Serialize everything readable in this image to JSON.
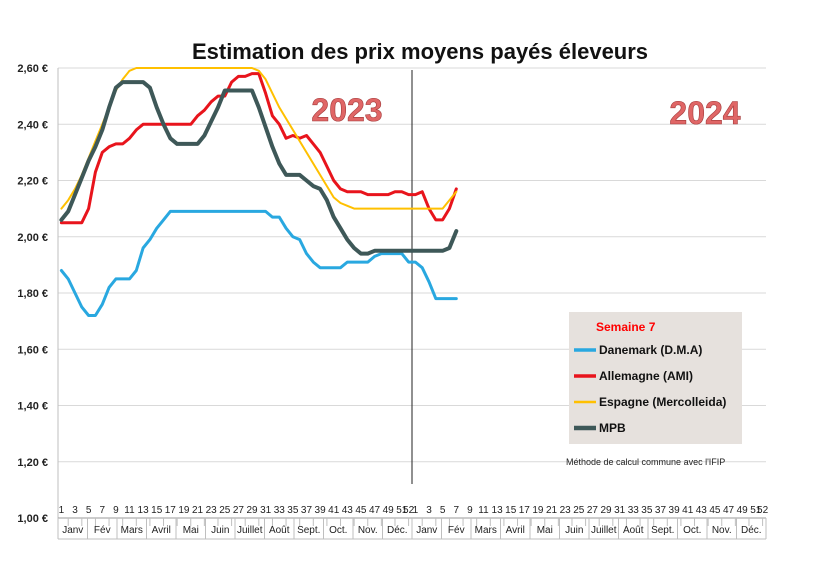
{
  "chart_data": {
    "type": "line",
    "title": "Estimation des prix moyens payés éleveurs",
    "xlabel": "",
    "ylabel": "",
    "ylim": [
      1.0,
      2.6
    ],
    "y_ticks": [
      "1,00 €",
      "1,20 €",
      "1,40 €",
      "1,60 €",
      "1,80 €",
      "2,00 €",
      "2,20 €",
      "2,40 €",
      "2,60 €"
    ],
    "y_tick_values": [
      1.0,
      1.2,
      1.4,
      1.6,
      1.8,
      2.0,
      2.2,
      2.4,
      2.6
    ],
    "grid": true,
    "weeks_per_year": 52,
    "years": [
      "2023",
      "2024"
    ],
    "week_ticks": [
      "1",
      "3",
      "5",
      "7",
      "9",
      "11",
      "13",
      "15",
      "17",
      "19",
      "21",
      "23",
      "25",
      "27",
      "29",
      "31",
      "33",
      "35",
      "37",
      "39",
      "41",
      "43",
      "45",
      "47",
      "49",
      "51",
      "52",
      "1",
      "3",
      "5",
      "7",
      "9",
      "11",
      "13",
      "15",
      "17",
      "19",
      "21",
      "23",
      "25",
      "27",
      "29",
      "31",
      "33",
      "35",
      "37",
      "39",
      "41",
      "43",
      "45",
      "47",
      "49",
      "51",
      "52"
    ],
    "months": [
      "Janv",
      "Fév",
      "Mars",
      "Avril",
      "Mai",
      "Juin",
      "Juillet",
      "Août",
      "Sept.",
      "Oct.",
      "Nov.",
      "Déc.",
      "Janv",
      "Fév",
      "Mars",
      "Avril",
      "Mai",
      "Juin",
      "Juillet",
      "Août",
      "Sept.",
      "Oct.",
      "Nov.",
      "Déc."
    ],
    "legend_title": "Semaine 7",
    "legend_position": "bottom-right",
    "note": "Méthode de calcul commune avec l'IFIP",
    "series": [
      {
        "name": "Danemark (D.M.A)",
        "color": "#29a8e0",
        "x": [
          1,
          2,
          3,
          4,
          5,
          6,
          7,
          8,
          9,
          10,
          11,
          12,
          13,
          14,
          15,
          16,
          17,
          18,
          19,
          20,
          21,
          22,
          23,
          24,
          25,
          26,
          27,
          28,
          29,
          30,
          31,
          32,
          33,
          34,
          35,
          36,
          37,
          38,
          39,
          40,
          41,
          42,
          43,
          44,
          45,
          46,
          47,
          48,
          49,
          50,
          51,
          52,
          53,
          54,
          55,
          56,
          57,
          58,
          59
        ],
        "values": [
          1.88,
          1.85,
          1.8,
          1.75,
          1.72,
          1.72,
          1.76,
          1.82,
          1.85,
          1.85,
          1.85,
          1.88,
          1.96,
          1.99,
          2.03,
          2.06,
          2.09,
          2.09,
          2.09,
          2.09,
          2.09,
          2.09,
          2.09,
          2.09,
          2.09,
          2.09,
          2.09,
          2.09,
          2.09,
          2.09,
          2.09,
          2.07,
          2.07,
          2.03,
          2.0,
          1.99,
          1.94,
          1.91,
          1.89,
          1.89,
          1.89,
          1.89,
          1.91,
          1.91,
          1.91,
          1.91,
          1.93,
          1.94,
          1.94,
          1.94,
          1.94,
          1.91,
          1.91,
          1.89,
          1.84,
          1.78,
          1.78,
          1.78,
          1.78
        ]
      },
      {
        "name": "Allemagne (AMI)",
        "color": "#e8141c",
        "x": [
          1,
          2,
          3,
          4,
          5,
          6,
          7,
          8,
          9,
          10,
          11,
          12,
          13,
          14,
          15,
          16,
          17,
          18,
          19,
          20,
          21,
          22,
          23,
          24,
          25,
          26,
          27,
          28,
          29,
          30,
          31,
          32,
          33,
          34,
          35,
          36,
          37,
          38,
          39,
          40,
          41,
          42,
          43,
          44,
          45,
          46,
          47,
          48,
          49,
          50,
          51,
          52,
          53,
          54,
          55,
          56,
          57,
          58,
          59
        ],
        "values": [
          2.05,
          2.05,
          2.05,
          2.05,
          2.1,
          2.23,
          2.3,
          2.32,
          2.33,
          2.33,
          2.35,
          2.38,
          2.4,
          2.4,
          2.4,
          2.4,
          2.4,
          2.4,
          2.4,
          2.4,
          2.43,
          2.45,
          2.48,
          2.5,
          2.5,
          2.55,
          2.57,
          2.57,
          2.58,
          2.58,
          2.51,
          2.43,
          2.4,
          2.35,
          2.36,
          2.35,
          2.36,
          2.33,
          2.3,
          2.25,
          2.2,
          2.17,
          2.16,
          2.16,
          2.16,
          2.15,
          2.15,
          2.15,
          2.15,
          2.16,
          2.16,
          2.15,
          2.15,
          2.16,
          2.1,
          2.06,
          2.06,
          2.1,
          2.17
        ]
      },
      {
        "name": "Espagne (Mercolleida)",
        "color": "#ffc000",
        "x": [
          1,
          2,
          3,
          4,
          5,
          6,
          7,
          8,
          9,
          10,
          11,
          12,
          13,
          14,
          15,
          16,
          17,
          18,
          19,
          20,
          21,
          22,
          23,
          24,
          25,
          26,
          27,
          28,
          29,
          30,
          31,
          32,
          33,
          34,
          35,
          36,
          37,
          38,
          39,
          40,
          41,
          42,
          43,
          44,
          45,
          46,
          47,
          48,
          49,
          50,
          51,
          52,
          53,
          54,
          55,
          56,
          57,
          58,
          59
        ],
        "values": [
          2.1,
          2.13,
          2.17,
          2.22,
          2.28,
          2.34,
          2.4,
          2.46,
          2.52,
          2.56,
          2.59,
          2.6,
          2.6,
          2.6,
          2.6,
          2.6,
          2.6,
          2.6,
          2.6,
          2.6,
          2.6,
          2.6,
          2.6,
          2.6,
          2.6,
          2.6,
          2.6,
          2.6,
          2.6,
          2.59,
          2.56,
          2.51,
          2.46,
          2.42,
          2.38,
          2.34,
          2.3,
          2.26,
          2.22,
          2.18,
          2.14,
          2.12,
          2.11,
          2.1,
          2.1,
          2.1,
          2.1,
          2.1,
          2.1,
          2.1,
          2.1,
          2.1,
          2.1,
          2.1,
          2.1,
          2.1,
          2.1,
          2.13,
          2.16
        ]
      },
      {
        "name": "MPB",
        "color": "#3e5858",
        "x": [
          1,
          2,
          3,
          4,
          5,
          6,
          7,
          8,
          9,
          10,
          11,
          12,
          13,
          14,
          15,
          16,
          17,
          18,
          19,
          20,
          21,
          22,
          23,
          24,
          25,
          26,
          27,
          28,
          29,
          30,
          31,
          32,
          33,
          34,
          35,
          36,
          37,
          38,
          39,
          40,
          41,
          42,
          43,
          44,
          45,
          46,
          47,
          48,
          49,
          50,
          51,
          52,
          53,
          54,
          55,
          56,
          57,
          58,
          59
        ],
        "values": [
          2.06,
          2.09,
          2.15,
          2.21,
          2.27,
          2.32,
          2.38,
          2.46,
          2.53,
          2.55,
          2.55,
          2.55,
          2.55,
          2.53,
          2.46,
          2.4,
          2.35,
          2.33,
          2.33,
          2.33,
          2.33,
          2.36,
          2.41,
          2.46,
          2.52,
          2.52,
          2.52,
          2.52,
          2.52,
          2.46,
          2.39,
          2.32,
          2.26,
          2.22,
          2.22,
          2.22,
          2.2,
          2.18,
          2.17,
          2.13,
          2.07,
          2.03,
          1.99,
          1.96,
          1.94,
          1.94,
          1.95,
          1.95,
          1.95,
          1.95,
          1.95,
          1.95,
          1.95,
          1.95,
          1.95,
          1.95,
          1.95,
          1.96,
          2.02
        ]
      }
    ]
  }
}
